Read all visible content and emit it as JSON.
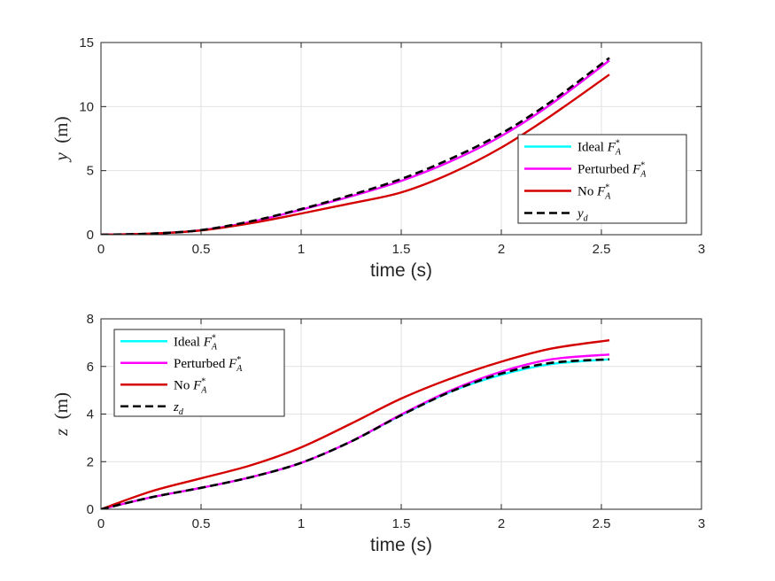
{
  "chart_data": [
    {
      "type": "line",
      "title": "",
      "xlabel": "time (s)",
      "ylabel": "y  (m)",
      "xlim": [
        0,
        3
      ],
      "ylim": [
        0,
        15
      ],
      "xticks": [
        "0",
        "0.5",
        "1",
        "1.5",
        "2",
        "2.5",
        "3"
      ],
      "yticks": [
        "0",
        "5",
        "10",
        "15"
      ],
      "grid": true,
      "legend_position": "right",
      "series": [
        {
          "name": "Ideal F*A",
          "legend_main": "Ideal ",
          "legend_sub": "A",
          "legend_sup": "*",
          "legend_var": "F",
          "color": "#00ffff",
          "style": "solid",
          "x": [
            0,
            0.25,
            0.5,
            0.75,
            1.0,
            1.25,
            1.5,
            1.75,
            2.0,
            2.25,
            2.54
          ],
          "y": [
            0,
            0.08,
            0.35,
            1.0,
            1.95,
            3.0,
            4.2,
            5.75,
            7.7,
            10.2,
            13.6
          ]
        },
        {
          "name": "Perturbed F*A",
          "legend_main": "Perturbed ",
          "legend_sub": "A",
          "legend_sup": "*",
          "legend_var": "F",
          "color": "#ff00ff",
          "style": "solid",
          "x": [
            0,
            0.25,
            0.5,
            0.75,
            1.0,
            1.25,
            1.5,
            1.75,
            2.0,
            2.25,
            2.54
          ],
          "y": [
            0,
            0.08,
            0.35,
            1.0,
            1.95,
            3.0,
            4.2,
            5.75,
            7.7,
            10.2,
            13.6
          ]
        },
        {
          "name": "No F*A",
          "legend_main": "No ",
          "legend_sub": "A",
          "legend_sup": "*",
          "legend_var": "F",
          "color": "#d40000",
          "style": "solid",
          "x": [
            0,
            0.25,
            0.5,
            0.75,
            1.0,
            1.25,
            1.5,
            1.75,
            2.0,
            2.25,
            2.54
          ],
          "y": [
            0,
            0.08,
            0.33,
            0.9,
            1.65,
            2.45,
            3.3,
            4.8,
            6.8,
            9.3,
            12.5
          ]
        },
        {
          "name": "yd",
          "legend_main": "",
          "legend_sub": "d",
          "legend_sup": "",
          "legend_var": "y",
          "color": "#000000",
          "style": "dashed",
          "x": [
            0,
            0.25,
            0.5,
            0.75,
            1.0,
            1.25,
            1.5,
            1.75,
            2.0,
            2.25,
            2.54
          ],
          "y": [
            0,
            0.08,
            0.36,
            1.05,
            2.0,
            3.1,
            4.35,
            5.95,
            7.9,
            10.4,
            13.8
          ]
        }
      ]
    },
    {
      "type": "line",
      "title": "",
      "xlabel": "time (s)",
      "ylabel": "z  (m)",
      "xlim": [
        0,
        3
      ],
      "ylim": [
        0,
        8
      ],
      "xticks": [
        "0",
        "0.5",
        "1",
        "1.5",
        "2",
        "2.5",
        "3"
      ],
      "yticks": [
        "0",
        "2",
        "4",
        "6",
        "8"
      ],
      "grid": true,
      "legend_position": "top-left",
      "series": [
        {
          "name": "Ideal F*A",
          "legend_main": "Ideal ",
          "legend_sub": "A",
          "legend_sup": "*",
          "legend_var": "F",
          "color": "#00ffff",
          "style": "solid",
          "x": [
            0,
            0.25,
            0.5,
            0.75,
            1.0,
            1.25,
            1.5,
            1.75,
            2.0,
            2.25,
            2.54
          ],
          "y": [
            0,
            0.5,
            0.9,
            1.35,
            1.95,
            2.85,
            3.95,
            4.95,
            5.65,
            6.1,
            6.3
          ]
        },
        {
          "name": "Perturbed F*A",
          "legend_main": "Perturbed ",
          "legend_sub": "A",
          "legend_sup": "*",
          "legend_var": "F",
          "color": "#ff00ff",
          "style": "solid",
          "x": [
            0,
            0.25,
            0.5,
            0.75,
            1.0,
            1.25,
            1.5,
            1.75,
            2.0,
            2.25,
            2.54
          ],
          "y": [
            0,
            0.5,
            0.9,
            1.35,
            1.95,
            2.85,
            3.98,
            5.0,
            5.78,
            6.3,
            6.5
          ]
        },
        {
          "name": "No F*A",
          "legend_main": "No ",
          "legend_sub": "A",
          "legend_sup": "*",
          "legend_var": "F",
          "color": "#d40000",
          "style": "solid",
          "x": [
            0,
            0.25,
            0.5,
            0.75,
            1.0,
            1.25,
            1.5,
            1.75,
            2.0,
            2.25,
            2.54
          ],
          "y": [
            0,
            0.75,
            1.3,
            1.85,
            2.6,
            3.6,
            4.65,
            5.5,
            6.2,
            6.75,
            7.1
          ]
        },
        {
          "name": "zd",
          "legend_main": "",
          "legend_sub": "d",
          "legend_sup": "",
          "legend_var": "z",
          "color": "#000000",
          "style": "dashed",
          "x": [
            0,
            0.25,
            0.5,
            0.75,
            1.0,
            1.25,
            1.5,
            1.75,
            2.0,
            2.25,
            2.54
          ],
          "y": [
            0,
            0.5,
            0.9,
            1.35,
            1.95,
            2.85,
            3.95,
            4.95,
            5.7,
            6.15,
            6.3
          ]
        }
      ]
    }
  ]
}
